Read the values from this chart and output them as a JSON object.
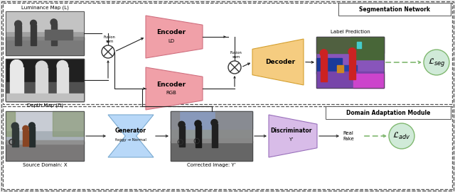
{
  "bg_color": "#f0f0f0",
  "dashed_color": "#555555",
  "seg_network_label": "Segmentation Network",
  "dom_adapt_label": "Domain Adaptation Module",
  "lum_map_label": "Luminance Map (L)",
  "depth_map_label": "Depth Map (D)",
  "source_domain_label": "Source Domain: X",
  "corrected_img_label": "Corrected Image: Y’",
  "encoder_ld_label": "Encoder",
  "encoder_ld_sub": "LD",
  "encoder_rgb_label": "Encoder",
  "encoder_rgb_sub": "RGB",
  "decoder_label": "Decoder",
  "label_pred_label": "Label Prediction",
  "generator_label": "Generator",
  "generator_sub": "foggy → Normal",
  "discriminator_label": "Discriminator",
  "discriminator_sub": "Y’",
  "fusion_sum_1": "Fusion\nsum",
  "fusion_sum_2": "Fusion\nsum",
  "real_fake_label": "Real\nFake",
  "loss_seg_label": "$\\mathcal{L}_{seg}$",
  "loss_adv_label": "$\\mathcal{L}_{adv}$",
  "pink_color": "#f0a0a8",
  "pink_dark": "#d07080",
  "orange_color": "#f5cc80",
  "orange_dark": "#d4a030",
  "blue_light": "#b8d8f8",
  "blue_dark": "#7aaad0",
  "purple_light": "#d8bce8",
  "purple_dark": "#9970bb",
  "green_circle_fill": "#d0ead8",
  "green_circle_edge": "#80b870",
  "dashed_arrow_color": "#80b870",
  "lum_bg": "#a8a8a8",
  "dep_bg": "#d0d0d0",
  "lp_purple": "#8855bb",
  "lp_green": "#4a7050",
  "lp_blue": "#2244aa",
  "lp_red": "#cc2222",
  "lp_pink": "#cc44bb",
  "src_fog_sky": "#c8ccd8",
  "src_road": "#7a7a7a",
  "ci_sky": "#8899bb",
  "ci_road": "#686868"
}
